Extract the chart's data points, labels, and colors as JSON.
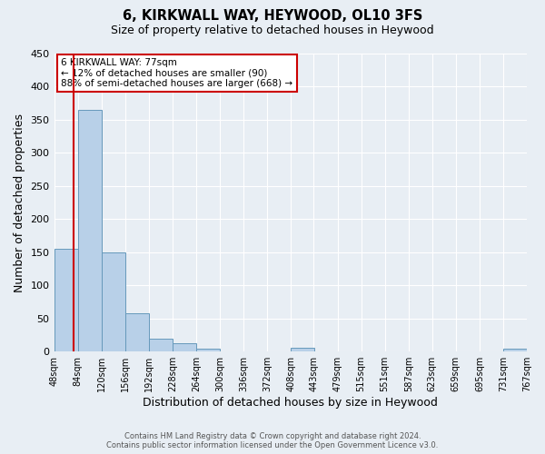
{
  "title": "6, KIRKWALL WAY, HEYWOOD, OL10 3FS",
  "subtitle": "Size of property relative to detached houses in Heywood",
  "xlabel": "Distribution of detached houses by size in Heywood",
  "ylabel": "Number of detached properties",
  "bar_color": "#b8d0e8",
  "bar_edge_color": "#6699bb",
  "background_color": "#e8eef4",
  "grid_color": "#ffffff",
  "bin_edges": [
    48,
    84,
    120,
    156,
    192,
    228,
    264,
    300,
    336,
    372,
    408,
    443,
    479,
    515,
    551,
    587,
    623,
    659,
    695,
    731,
    767
  ],
  "bin_labels": [
    "48sqm",
    "84sqm",
    "120sqm",
    "156sqm",
    "192sqm",
    "228sqm",
    "264sqm",
    "300sqm",
    "336sqm",
    "372sqm",
    "408sqm",
    "443sqm",
    "479sqm",
    "515sqm",
    "551sqm",
    "587sqm",
    "623sqm",
    "659sqm",
    "695sqm",
    "731sqm",
    "767sqm"
  ],
  "bar_heights": [
    155,
    365,
    150,
    58,
    20,
    13,
    5,
    0,
    0,
    0,
    6,
    0,
    0,
    0,
    0,
    0,
    0,
    0,
    0,
    5
  ],
  "ylim": [
    0,
    450
  ],
  "yticks": [
    0,
    50,
    100,
    150,
    200,
    250,
    300,
    350,
    400,
    450
  ],
  "property_line_x": 77,
  "property_line_color": "#cc0000",
  "annotation_title": "6 KIRKWALL WAY: 77sqm",
  "annotation_line1": "← 12% of detached houses are smaller (90)",
  "annotation_line2": "88% of semi-detached houses are larger (668) →",
  "annotation_box_color": "#ffffff",
  "annotation_box_edge_color": "#cc0000",
  "footer_line1": "Contains HM Land Registry data © Crown copyright and database right 2024.",
  "footer_line2": "Contains public sector information licensed under the Open Government Licence v3.0."
}
